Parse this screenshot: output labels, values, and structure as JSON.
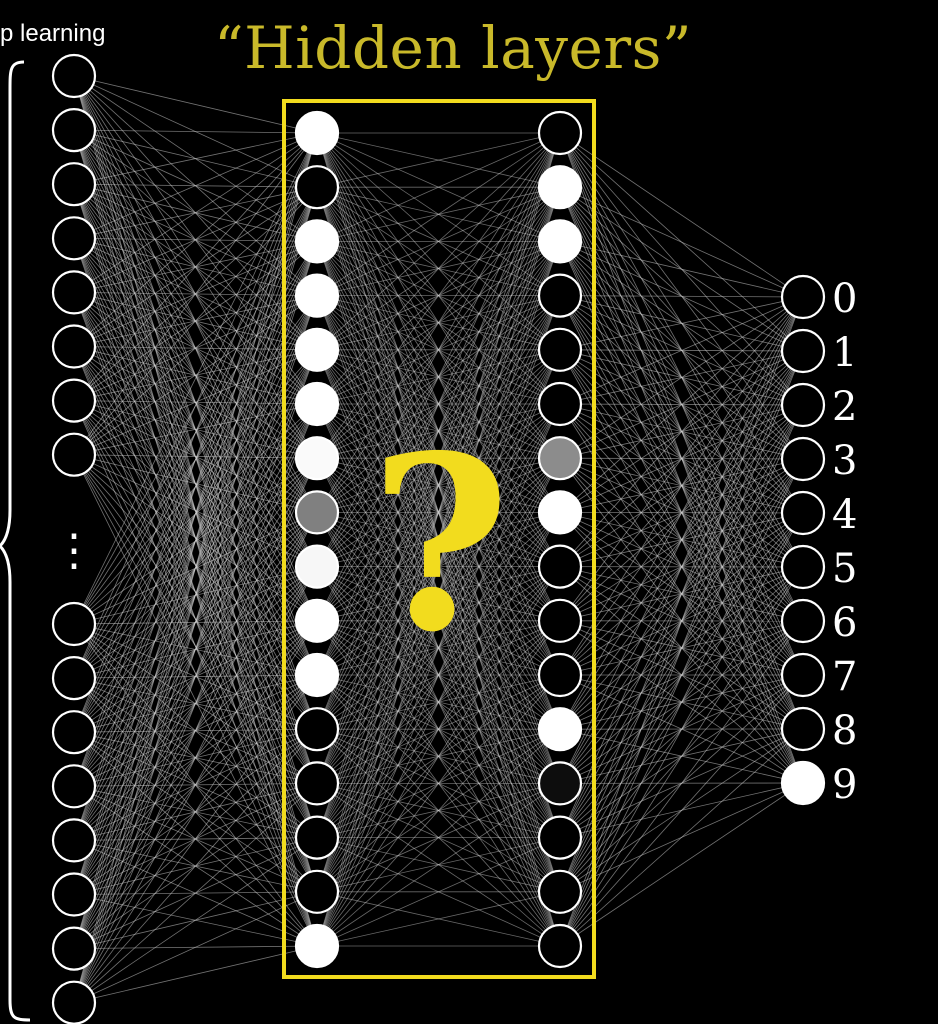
{
  "corner_caption": "p learning",
  "title": "“Hidden layers”",
  "question_mark": "?",
  "colors": {
    "background": "#000000",
    "title": "#c9b92a",
    "highlight_box": "#f2dc1e",
    "question_mark": "#f2dc1e",
    "neuron_stroke": "#ffffff",
    "edge": "#cfcfcf"
  },
  "input_layer": {
    "visible_top_count": 8,
    "visible_bottom_count": 8,
    "ellipsis": "⋮"
  },
  "hidden_layer_1": {
    "activations": [
      1.0,
      0.0,
      1.0,
      1.0,
      1.0,
      1.0,
      0.98,
      0.5,
      0.97,
      1.0,
      1.0,
      0.0,
      0.0,
      0.0,
      0.0,
      1.0
    ]
  },
  "hidden_layer_2": {
    "activations": [
      0.0,
      1.0,
      1.0,
      0.0,
      0.0,
      0.0,
      0.55,
      1.0,
      0.0,
      0.0,
      0.0,
      1.0,
      0.05,
      0.0,
      0.0,
      0.0
    ]
  },
  "output_layer": {
    "labels": [
      "0",
      "1",
      "2",
      "3",
      "4",
      "5",
      "6",
      "7",
      "8",
      "9"
    ],
    "activations": [
      0,
      0,
      0,
      0,
      0,
      0,
      0,
      0,
      0,
      1
    ]
  }
}
